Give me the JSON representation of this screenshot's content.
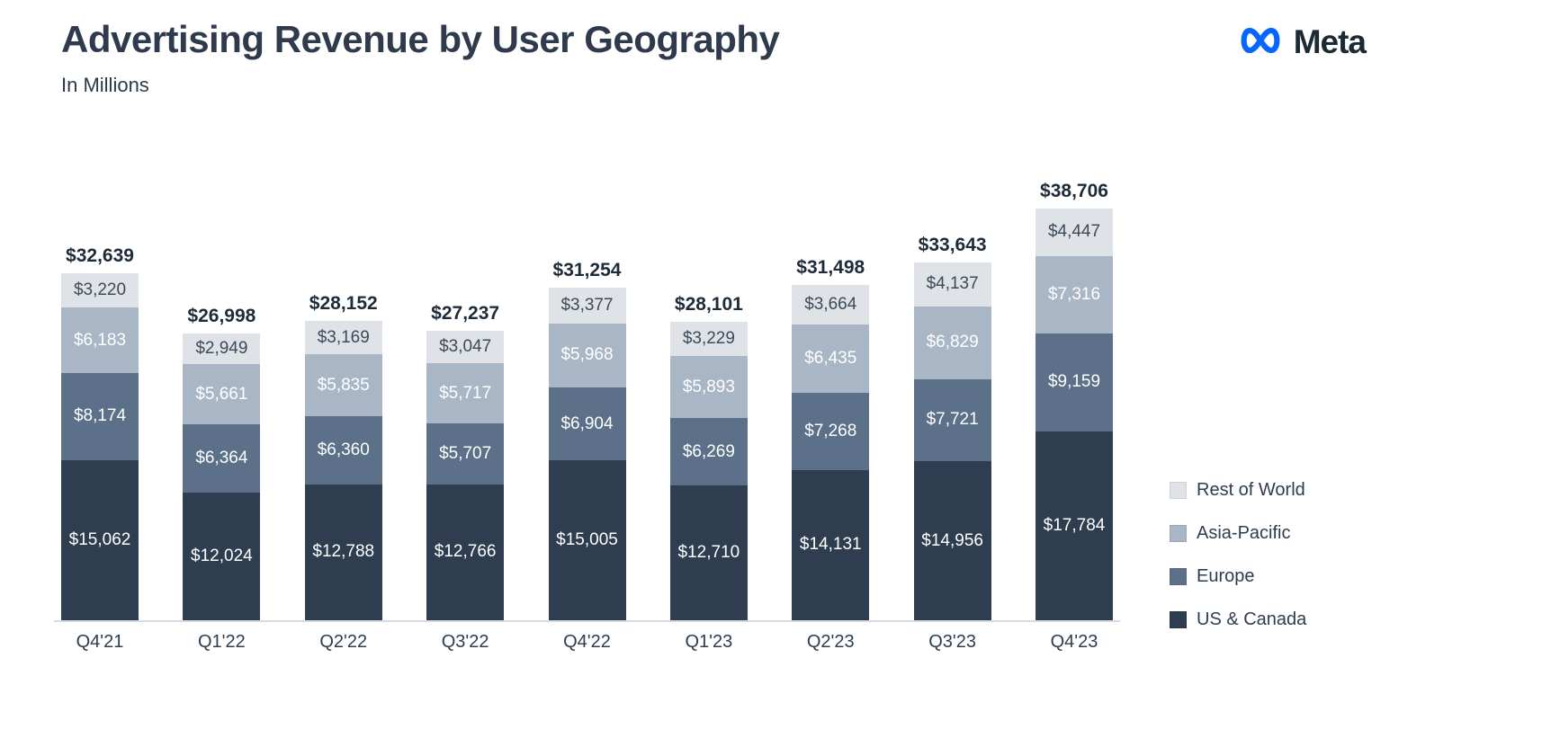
{
  "header": {
    "title": "Advertising Revenue by User Geography",
    "subtitle": "In Millions"
  },
  "brand": {
    "name": "Meta",
    "logo_color": "#0866FF",
    "text_color": "#1c2b33"
  },
  "colors": {
    "title_text": "#2f3b4d",
    "total_label_text": "#1e2b39",
    "axis_line": "#d8dbdf"
  },
  "legend": [
    {
      "label": "Rest of World",
      "color": "#dfe2e7"
    },
    {
      "label": "Asia-Pacific",
      "color": "#a8b6c6"
    },
    {
      "label": "Europe",
      "color": "#5c7189"
    },
    {
      "label": "US & Canada",
      "color": "#2e3d4f"
    }
  ],
  "chart_data": {
    "type": "bar",
    "stacked": true,
    "title": "Advertising Revenue by User Geography",
    "units": "USD millions",
    "legend_position": "right",
    "grid": false,
    "ylim": [
      0,
      40000
    ],
    "categories": [
      "Q4'21",
      "Q1'22",
      "Q2'22",
      "Q3'22",
      "Q4'22",
      "Q1'23",
      "Q2'23",
      "Q3'23",
      "Q4'23"
    ],
    "series": [
      {
        "name": "US & Canada",
        "color": "#2e3d4f",
        "text_color": "#ffffff",
        "values": [
          15062,
          12024,
          12788,
          12766,
          15005,
          12710,
          14131,
          14956,
          17784
        ]
      },
      {
        "name": "Europe",
        "color": "#5c7189",
        "text_color": "#ffffff",
        "values": [
          8174,
          6364,
          6360,
          5707,
          6904,
          6269,
          7268,
          7721,
          9159
        ]
      },
      {
        "name": "Asia-Pacific",
        "color": "#a8b6c6",
        "text_color": "#ffffff",
        "values": [
          6183,
          5661,
          5835,
          5717,
          5968,
          5893,
          6435,
          6829,
          7316
        ]
      },
      {
        "name": "Rest of World",
        "color": "#dfe2e7",
        "text_color": "#3c4a59",
        "values": [
          3220,
          2949,
          3169,
          3047,
          3377,
          3229,
          3664,
          4137,
          4447
        ]
      }
    ],
    "totals": [
      32639,
      26998,
      28152,
      27237,
      31254,
      28101,
      31498,
      33643,
      38706
    ]
  }
}
